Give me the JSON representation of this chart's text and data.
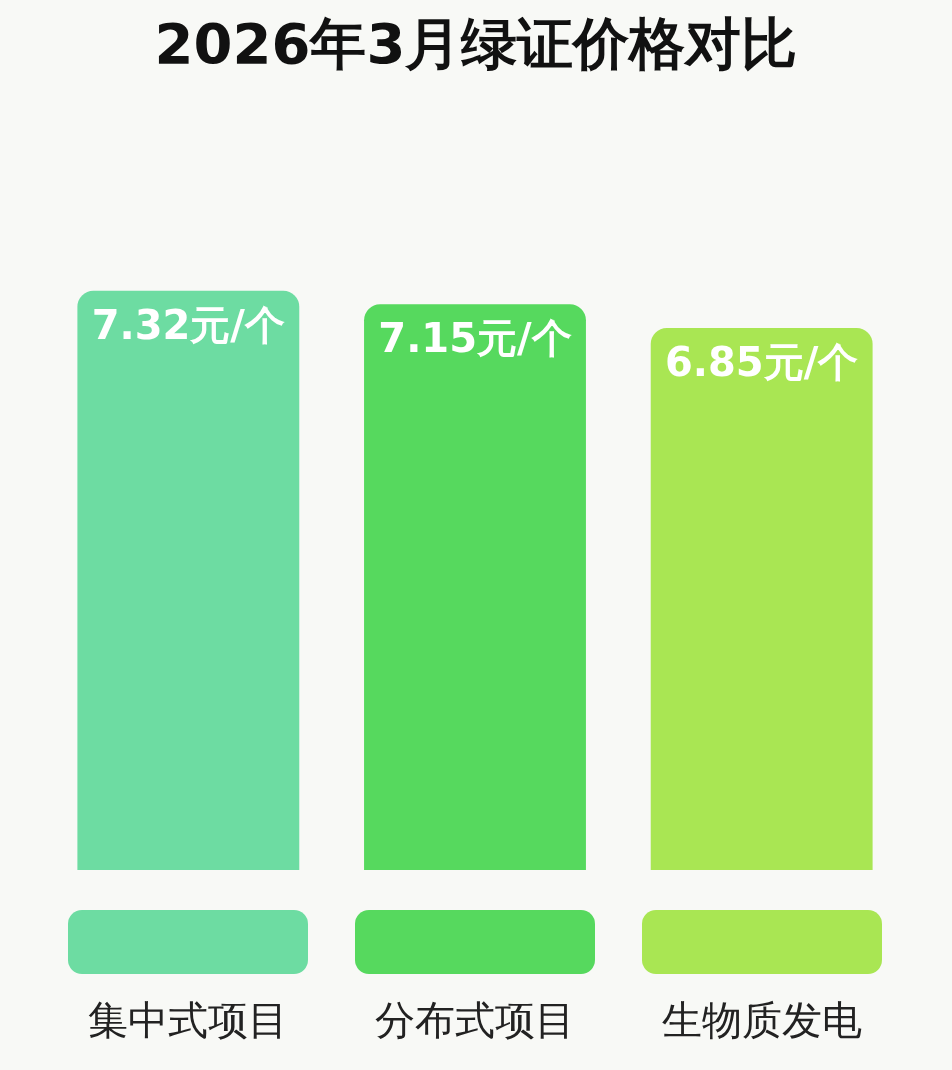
{
  "chart_data": {
    "type": "bar",
    "title": "2026年3月绿证价格对比",
    "categories": [
      "集中式项目",
      "分布式项目",
      "生物质发电"
    ],
    "values": [
      7.32,
      7.15,
      6.85
    ],
    "colors": [
      "#6ddca2",
      "#56d95e",
      "#a9e653"
    ],
    "value_labels": [
      "7.32元/个",
      "7.15元/个",
      "6.85元/个"
    ]
  }
}
